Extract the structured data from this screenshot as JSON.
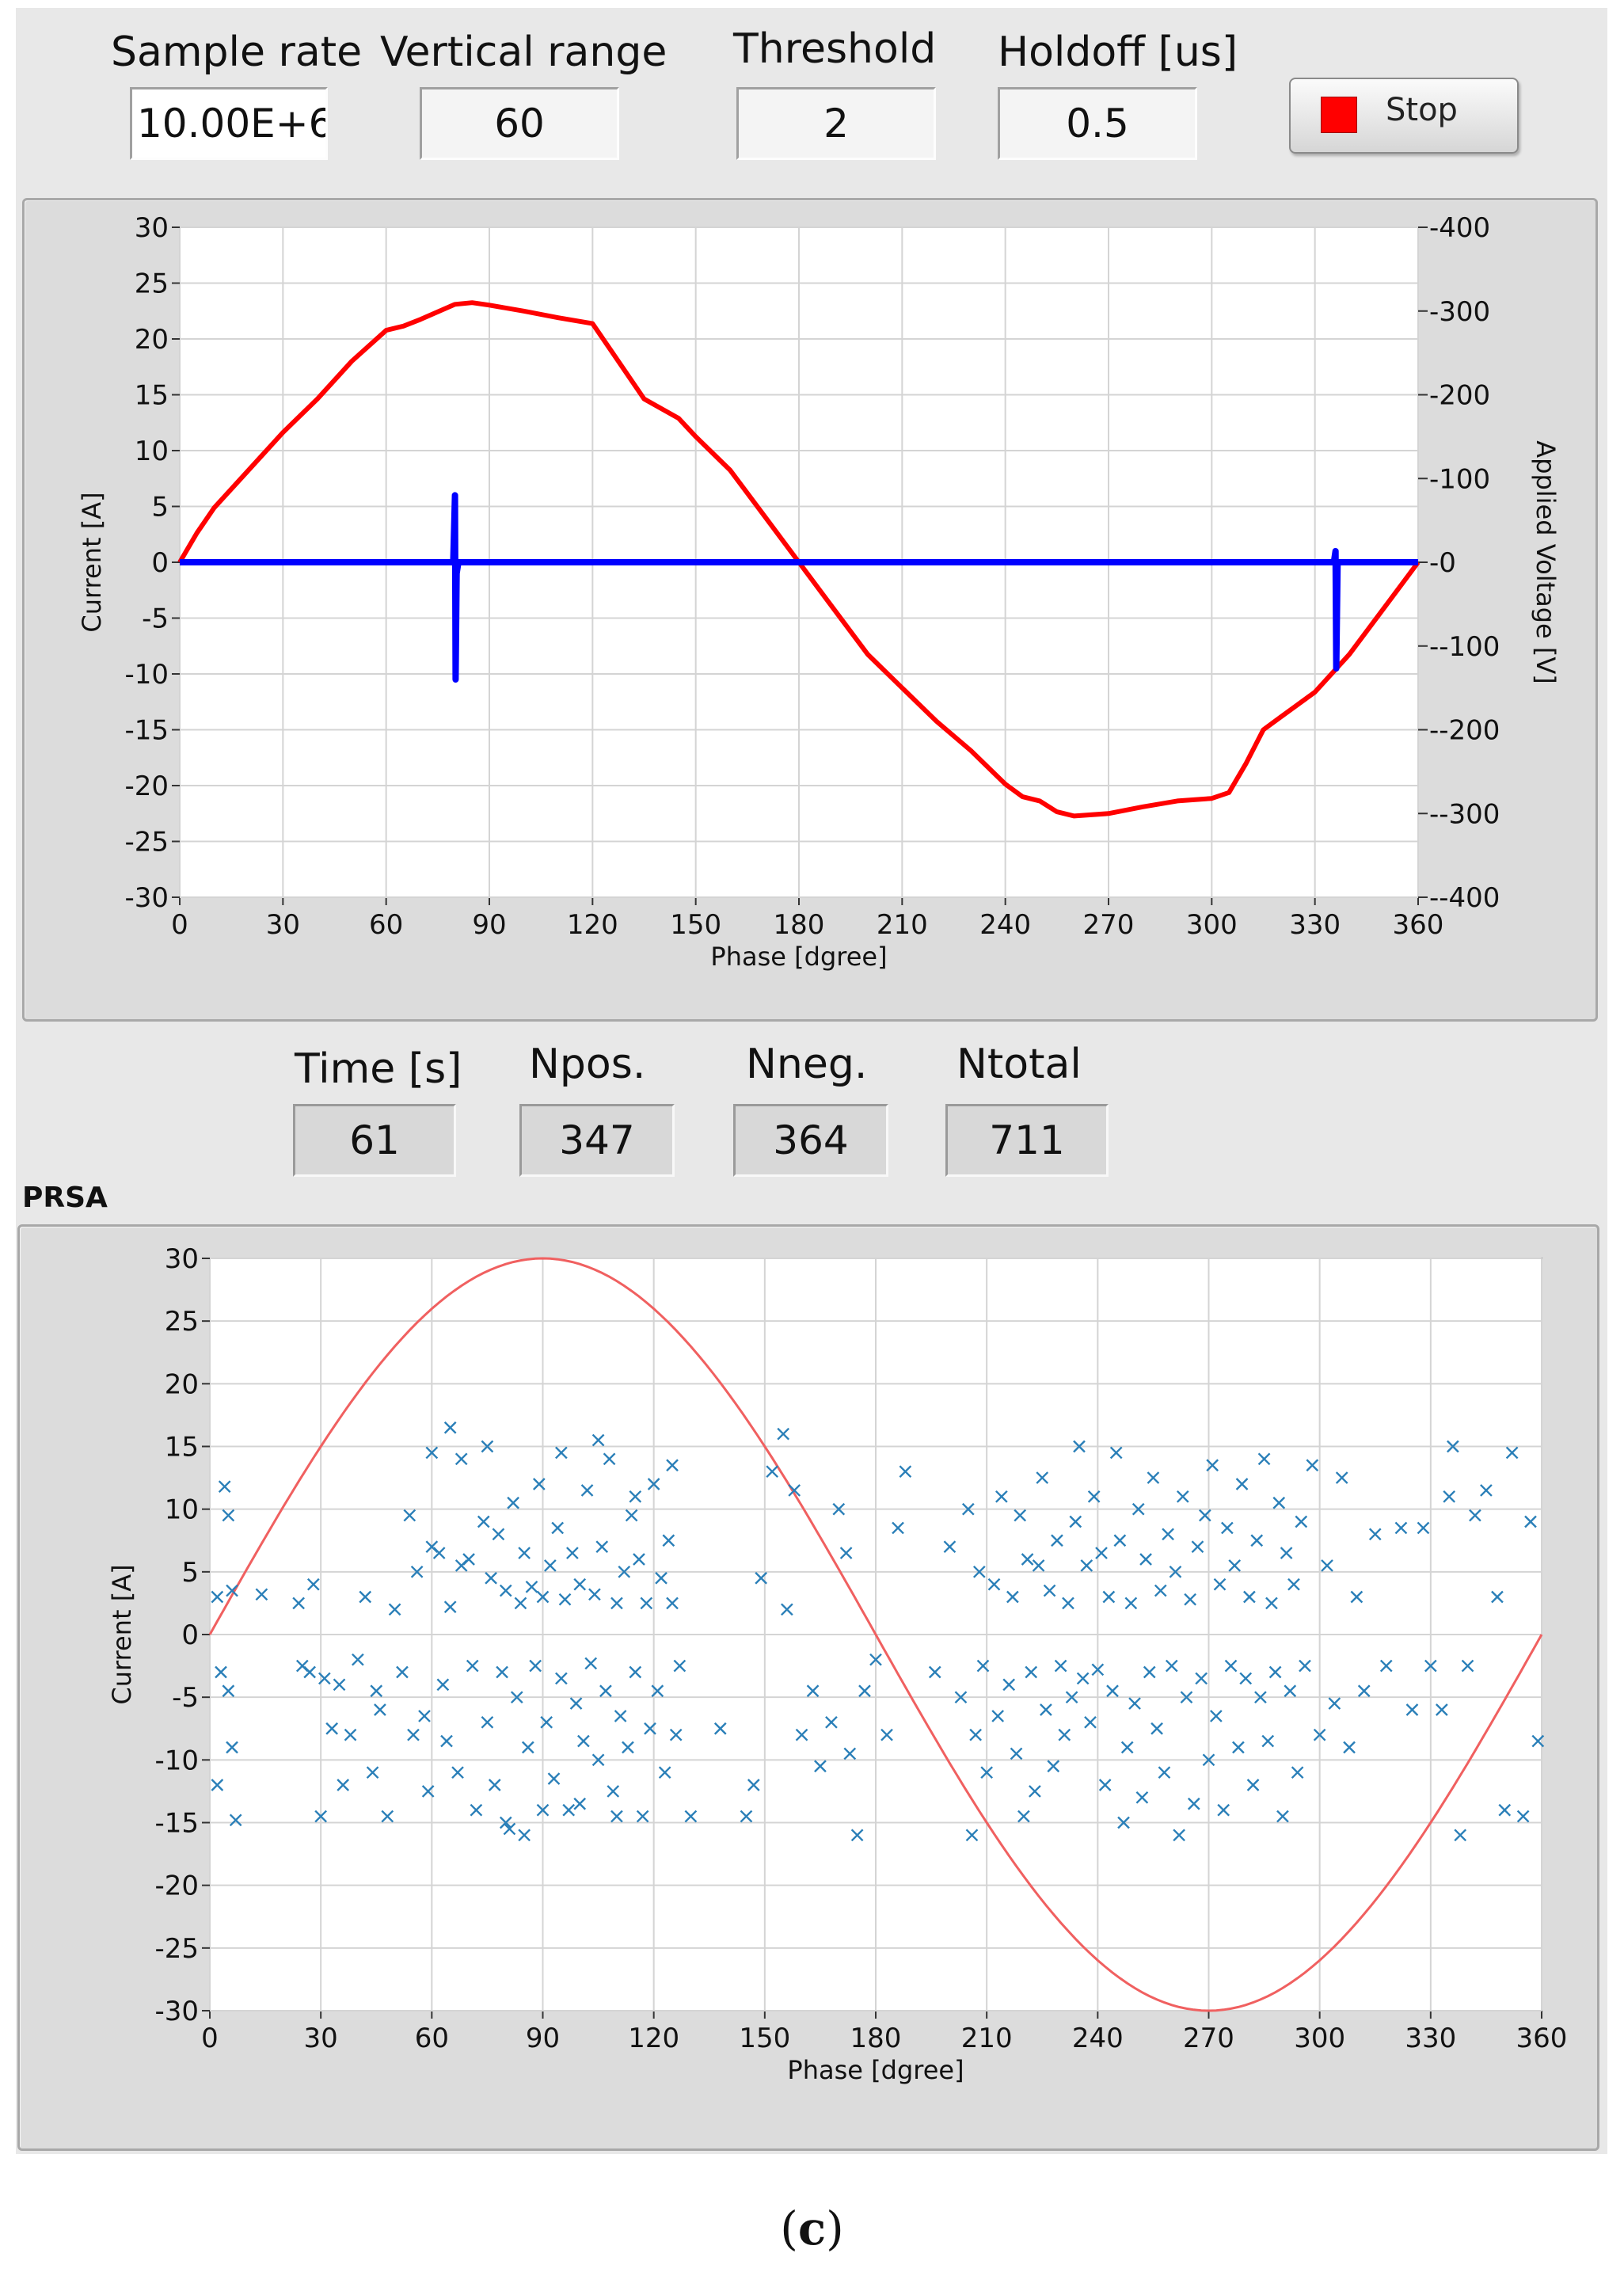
{
  "controls": {
    "sample_rate": {
      "label": "Sample rate",
      "value": "10.00E+6"
    },
    "vertical_range": {
      "label": "Vertical range",
      "value": "60"
    },
    "threshold": {
      "label": "Threshold",
      "value": "2"
    },
    "holdoff": {
      "label": "Holdoff [us]",
      "value": "0.5"
    },
    "stop_button": {
      "label": "Stop",
      "led_color": "#ff0000",
      "icon": "stop-led-indicator"
    }
  },
  "indicators": {
    "time": {
      "label": "Time [s]",
      "value": "61"
    },
    "npos": {
      "label": "Npos.",
      "value": "347"
    },
    "nneg": {
      "label": "Nneg.",
      "value": "364"
    },
    "ntotal": {
      "label": "Ntotal",
      "value": "711"
    }
  },
  "prsa_label": "PRSA",
  "caption": {
    "open": "(",
    "letter": "c",
    "close": ")"
  },
  "chart_data": [
    {
      "type": "line",
      "name": "waveform-graph",
      "xlabel": "Phase [dgree]",
      "ylabel": "Current [A]",
      "y2label": "Applied Voltage [V]",
      "xlim": [
        0,
        360
      ],
      "ylim": [
        -30,
        30
      ],
      "y2lim": [
        -400,
        400
      ],
      "x_ticks": [
        "0",
        "30",
        "60",
        "90",
        "120",
        "150",
        "180",
        "210",
        "240",
        "270",
        "300",
        "330",
        "360"
      ],
      "y_ticks": [
        "30",
        "25",
        "20",
        "15",
        "10",
        "5",
        "0",
        "-5",
        "-10",
        "-15",
        "-20",
        "-25",
        "-30"
      ],
      "y2_ticks": [
        "400",
        "300",
        "200",
        "100",
        "0",
        "-100",
        "-200",
        "-300",
        "-400"
      ],
      "grid": true,
      "series": [
        {
          "axis": "right",
          "color": "#ff0000",
          "x": [
            0,
            5,
            10,
            20,
            30,
            40,
            50,
            60,
            65,
            70,
            80,
            85,
            90,
            100,
            110,
            120,
            125,
            135,
            145,
            150,
            160,
            170,
            180,
            190,
            200,
            210,
            220,
            230,
            240,
            245,
            250,
            255,
            260,
            270,
            280,
            290,
            300,
            305,
            310,
            315,
            320,
            330,
            340,
            350,
            360
          ],
          "y": [
            0,
            35,
            65,
            110,
            155,
            195,
            240,
            277,
            282,
            290,
            308,
            310,
            307,
            300,
            292,
            285,
            255,
            195,
            172,
            150,
            110,
            55,
            0,
            -55,
            -110,
            -150,
            -190,
            -225,
            -265,
            -280,
            -285,
            -298,
            -303,
            -300,
            -292,
            -285,
            -282,
            -275,
            -240,
            -200,
            -185,
            -155,
            -110,
            -55,
            0
          ]
        },
        {
          "axis": "left",
          "color": "#0000ff",
          "x": [
            0,
            79.5,
            80,
            80.2,
            80.5,
            81,
            335.5,
            336,
            336.2,
            336.6,
            337,
            360
          ],
          "y": [
            0,
            0,
            6,
            -10.5,
            -1,
            0,
            0,
            1,
            -9.5,
            0,
            0,
            0
          ]
        }
      ]
    },
    {
      "type": "scatter",
      "name": "prsa-graph",
      "xlabel": "Phase [dgree]",
      "ylabel": "Current [A]",
      "xlim": [
        0,
        360
      ],
      "ylim": [
        -30,
        30
      ],
      "x_ticks": [
        "0",
        "30",
        "60",
        "90",
        "120",
        "150",
        "180",
        "210",
        "240",
        "270",
        "300",
        "330",
        "360"
      ],
      "y_ticks": [
        "30",
        "25",
        "20",
        "15",
        "10",
        "5",
        "0",
        "-5",
        "-10",
        "-15",
        "-20",
        "-25",
        "-30"
      ],
      "grid": true,
      "reference_sine": {
        "amplitude": 30,
        "color": "#f06060"
      },
      "marker_color": "#2a7fb8",
      "points": [
        [
          2,
          3
        ],
        [
          4,
          11.8
        ],
        [
          5,
          9.5
        ],
        [
          6,
          3.5
        ],
        [
          3,
          -3
        ],
        [
          2,
          -12
        ],
        [
          5,
          -4.5
        ],
        [
          6,
          -9
        ],
        [
          7,
          -14.8
        ],
        [
          14,
          3.2
        ],
        [
          24,
          2.5
        ],
        [
          25,
          -2.5
        ],
        [
          27,
          -3
        ],
        [
          28,
          4
        ],
        [
          30,
          -14.5
        ],
        [
          31,
          -3.5
        ],
        [
          33,
          -7.5
        ],
        [
          35,
          -4
        ],
        [
          36,
          -12
        ],
        [
          38,
          -8
        ],
        [
          40,
          -2
        ],
        [
          42,
          3
        ],
        [
          44,
          -11
        ],
        [
          45,
          -4.5
        ],
        [
          46,
          -6
        ],
        [
          48,
          -14.5
        ],
        [
          50,
          2
        ],
        [
          52,
          -3
        ],
        [
          54,
          9.5
        ],
        [
          55,
          -8
        ],
        [
          56,
          5
        ],
        [
          58,
          -6.5
        ],
        [
          59,
          -12.5
        ],
        [
          60,
          7
        ],
        [
          62,
          6.5
        ],
        [
          63,
          -4
        ],
        [
          64,
          -8.5
        ],
        [
          65,
          2.2
        ],
        [
          67,
          -11
        ],
        [
          68,
          5.5
        ],
        [
          70,
          6
        ],
        [
          71,
          -2.5
        ],
        [
          72,
          -14
        ],
        [
          74,
          9
        ],
        [
          75,
          -7
        ],
        [
          76,
          4.5
        ],
        [
          77,
          -12
        ],
        [
          78,
          8
        ],
        [
          79,
          -3
        ],
        [
          80,
          3.5
        ],
        [
          81,
          -15.5
        ],
        [
          82,
          10.5
        ],
        [
          83,
          -5
        ],
        [
          84,
          2.5
        ],
        [
          85,
          6.5
        ],
        [
          86,
          -9
        ],
        [
          87,
          3.8
        ],
        [
          88,
          -2.5
        ],
        [
          89,
          12
        ],
        [
          90,
          3
        ],
        [
          91,
          -7
        ],
        [
          92,
          5.5
        ],
        [
          93,
          -11.5
        ],
        [
          94,
          8.5
        ],
        [
          95,
          -3.5
        ],
        [
          96,
          2.8
        ],
        [
          97,
          -14
        ],
        [
          98,
          6.5
        ],
        [
          99,
          -5.5
        ],
        [
          100,
          4
        ],
        [
          101,
          -8.5
        ],
        [
          102,
          11.5
        ],
        [
          103,
          -2.3
        ],
        [
          104,
          3.2
        ],
        [
          105,
          -10
        ],
        [
          106,
          7
        ],
        [
          107,
          -4.5
        ],
        [
          108,
          14
        ],
        [
          109,
          -12.5
        ],
        [
          110,
          2.5
        ],
        [
          111,
          -6.5
        ],
        [
          112,
          5
        ],
        [
          113,
          -9
        ],
        [
          114,
          9.5
        ],
        [
          115,
          -3
        ],
        [
          116,
          6
        ],
        [
          117,
          -14.5
        ],
        [
          118,
          2.5
        ],
        [
          119,
          -7.5
        ],
        [
          120,
          12
        ],
        [
          121,
          -4.5
        ],
        [
          122,
          4.5
        ],
        [
          123,
          -11
        ],
        [
          124,
          7.5
        ],
        [
          125,
          2.5
        ],
        [
          126,
          -8
        ],
        [
          127,
          -2.5
        ],
        [
          60,
          14.5
        ],
        [
          65,
          16.5
        ],
        [
          68,
          14
        ],
        [
          75,
          15
        ],
        [
          80,
          -15
        ],
        [
          85,
          -16
        ],
        [
          90,
          -14
        ],
        [
          95,
          14.5
        ],
        [
          100,
          -13.5
        ],
        [
          105,
          15.5
        ],
        [
          110,
          -14.5
        ],
        [
          115,
          11
        ],
        [
          125,
          13.5
        ],
        [
          130,
          -14.5
        ],
        [
          138,
          -7.5
        ],
        [
          145,
          -14.5
        ],
        [
          147,
          -12
        ],
        [
          149,
          4.5
        ],
        [
          152,
          13
        ],
        [
          155,
          16
        ],
        [
          156,
          2
        ],
        [
          158,
          11.5
        ],
        [
          160,
          -8
        ],
        [
          163,
          -4.5
        ],
        [
          165,
          -10.5
        ],
        [
          168,
          -7
        ],
        [
          170,
          10
        ],
        [
          172,
          6.5
        ],
        [
          173,
          -9.5
        ],
        [
          175,
          -16
        ],
        [
          177,
          -4.5
        ],
        [
          180,
          -2
        ],
        [
          183,
          -8
        ],
        [
          186,
          8.5
        ],
        [
          188,
          13
        ],
        [
          196,
          -3
        ],
        [
          200,
          7
        ],
        [
          203,
          -5
        ],
        [
          205,
          10
        ],
        [
          206,
          -16
        ],
        [
          207,
          -8
        ],
        [
          208,
          5
        ],
        [
          209,
          -2.5
        ],
        [
          210,
          -11
        ],
        [
          212,
          4
        ],
        [
          213,
          -6.5
        ],
        [
          214,
          11
        ],
        [
          216,
          -4
        ],
        [
          217,
          3
        ],
        [
          218,
          -9.5
        ],
        [
          219,
          9.5
        ],
        [
          220,
          -14.5
        ],
        [
          221,
          6
        ],
        [
          222,
          -3
        ],
        [
          223,
          -12.5
        ],
        [
          224,
          5.5
        ],
        [
          225,
          12.5
        ],
        [
          226,
          -6
        ],
        [
          227,
          3.5
        ],
        [
          228,
          -10.5
        ],
        [
          229,
          7.5
        ],
        [
          230,
          -2.5
        ],
        [
          231,
          -8
        ],
        [
          232,
          2.5
        ],
        [
          233,
          -5
        ],
        [
          234,
          9
        ],
        [
          235,
          15
        ],
        [
          236,
          -3.5
        ],
        [
          237,
          5.5
        ],
        [
          238,
          -7
        ],
        [
          239,
          11
        ],
        [
          240,
          -2.8
        ],
        [
          241,
          6.5
        ],
        [
          242,
          -12
        ],
        [
          243,
          3
        ],
        [
          244,
          -4.5
        ],
        [
          245,
          14.5
        ],
        [
          246,
          7.5
        ],
        [
          247,
          -15
        ],
        [
          248,
          -9
        ],
        [
          249,
          2.5
        ],
        [
          250,
          -5.5
        ],
        [
          251,
          10
        ],
        [
          252,
          -13
        ],
        [
          253,
          6
        ],
        [
          254,
          -3
        ],
        [
          255,
          12.5
        ],
        [
          256,
          -7.5
        ],
        [
          257,
          3.5
        ],
        [
          258,
          -11
        ],
        [
          259,
          8
        ],
        [
          260,
          -2.5
        ],
        [
          261,
          5
        ],
        [
          262,
          -16
        ],
        [
          263,
          11
        ],
        [
          264,
          -5
        ],
        [
          265,
          2.8
        ],
        [
          266,
          -13.5
        ],
        [
          267,
          7
        ],
        [
          268,
          -3.5
        ],
        [
          269,
          9.5
        ],
        [
          270,
          -10
        ],
        [
          271,
          13.5
        ],
        [
          272,
          -6.5
        ],
        [
          273,
          4
        ],
        [
          274,
          -14
        ],
        [
          275,
          8.5
        ],
        [
          276,
          -2.5
        ],
        [
          277,
          5.5
        ],
        [
          278,
          -9
        ],
        [
          279,
          12
        ],
        [
          280,
          -3.5
        ],
        [
          281,
          3
        ],
        [
          282,
          -12
        ],
        [
          283,
          7.5
        ],
        [
          284,
          -5
        ],
        [
          285,
          14
        ],
        [
          286,
          -8.5
        ],
        [
          287,
          2.5
        ],
        [
          288,
          -3
        ],
        [
          289,
          10.5
        ],
        [
          290,
          -14.5
        ],
        [
          291,
          6.5
        ],
        [
          292,
          -4.5
        ],
        [
          293,
          4
        ],
        [
          294,
          -11
        ],
        [
          295,
          9
        ],
        [
          296,
          -2.5
        ],
        [
          298,
          13.5
        ],
        [
          300,
          -8
        ],
        [
          302,
          5.5
        ],
        [
          304,
          -5.5
        ],
        [
          306,
          12.5
        ],
        [
          308,
          -9
        ],
        [
          310,
          3
        ],
        [
          312,
          -4.5
        ],
        [
          315,
          8
        ],
        [
          318,
          -2.5
        ],
        [
          322,
          8.5
        ],
        [
          325,
          -6
        ],
        [
          328,
          8.5
        ],
        [
          330,
          -2.5
        ],
        [
          333,
          -6
        ],
        [
          335,
          11
        ],
        [
          336,
          15
        ],
        [
          338,
          -16
        ],
        [
          340,
          -2.5
        ],
        [
          342,
          9.5
        ],
        [
          345,
          11.5
        ],
        [
          348,
          3
        ],
        [
          350,
          -14
        ],
        [
          352,
          14.5
        ],
        [
          355,
          -14.5
        ],
        [
          357,
          9
        ],
        [
          359,
          -8.5
        ]
      ]
    }
  ]
}
